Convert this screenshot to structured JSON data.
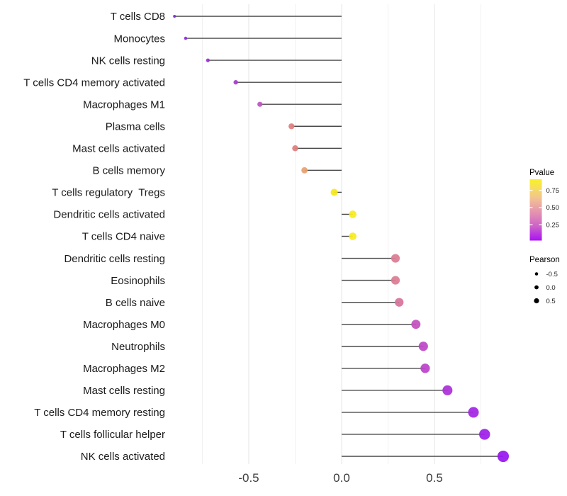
{
  "chart_data": {
    "type": "scatter",
    "variant": "lollipop",
    "title": "",
    "xlabel": "",
    "ylabel": "",
    "xlim": [
      -0.95,
      0.93
    ],
    "grid": {
      "vertical": true,
      "horizontal": false
    },
    "colors": {
      "background": "#FFFFFF",
      "stem": "#4A4A4A",
      "grid_major": "#E4E4E4",
      "grid_minor": "#F1F1F1",
      "axis_text": "#3D3D3D",
      "label_text": "#1A1A1A"
    },
    "x_ticks": [
      {
        "value": -0.5,
        "label": "-0.5"
      },
      {
        "value": 0.0,
        "label": "0.0"
      },
      {
        "value": 0.5,
        "label": "0.5"
      }
    ],
    "x_minor_ticks": [
      -0.75,
      -0.25,
      0.25,
      0.75
    ],
    "rows": [
      {
        "label": "T cells CD8",
        "pearson": -0.9,
        "color": "#8327E4"
      },
      {
        "label": "Monocytes",
        "pearson": -0.84,
        "color": "#8B2BDF"
      },
      {
        "label": "NK cells resting",
        "pearson": -0.72,
        "color": "#982FD9"
      },
      {
        "label": "T cells CD4 memory activated",
        "pearson": -0.57,
        "color": "#A93AD2"
      },
      {
        "label": "Macrophages M1",
        "pearson": -0.44,
        "color": "#BC55C6"
      },
      {
        "label": "Plasma cells",
        "pearson": -0.27,
        "color": "#E07F80"
      },
      {
        "label": "Mast cells activated",
        "pearson": -0.25,
        "color": "#E07E7D"
      },
      {
        "label": "B cells memory",
        "pearson": -0.2,
        "color": "#E8A06F"
      },
      {
        "label": "T cells regulatory  Tregs",
        "pearson": -0.04,
        "color": "#F6E81C"
      },
      {
        "label": "Dendritic cells activated",
        "pearson": 0.06,
        "color": "#F7EC1E"
      },
      {
        "label": "T cells CD4 naive",
        "pearson": 0.06,
        "color": "#F7EC1E"
      },
      {
        "label": "Dendritic cells resting",
        "pearson": 0.29,
        "color": "#DB7C92"
      },
      {
        "label": "Eosinophils",
        "pearson": 0.29,
        "color": "#DB7C92"
      },
      {
        "label": "B cells naive",
        "pearson": 0.31,
        "color": "#D7739B"
      },
      {
        "label": "Macrophages M0",
        "pearson": 0.4,
        "color": "#C351BE"
      },
      {
        "label": "Neutrophils",
        "pearson": 0.44,
        "color": "#BD47C7"
      },
      {
        "label": "Macrophages M2",
        "pearson": 0.45,
        "color": "#BB43C9"
      },
      {
        "label": "Mast cells resting",
        "pearson": 0.57,
        "color": "#AC2FD9"
      },
      {
        "label": "T cells CD4 memory resting",
        "pearson": 0.71,
        "color": "#A326E4"
      },
      {
        "label": "T cells follicular helper",
        "pearson": 0.77,
        "color": "#9E1FE9"
      },
      {
        "label": "NK cells activated",
        "pearson": 0.87,
        "color": "#9916F1"
      }
    ],
    "legend": {
      "position": "right",
      "pvalue": {
        "title": "Pvalue",
        "range": [
          0.02,
          0.91
        ],
        "ticks": [
          {
            "value": 0.75,
            "label": "0.75"
          },
          {
            "value": 0.5,
            "label": "0.50"
          },
          {
            "value": 0.25,
            "label": "0.25"
          }
        ],
        "gradient_top_to_bottom": [
          {
            "offset": "0%",
            "color": "#F9F125"
          },
          {
            "offset": "15%",
            "color": "#F6DD5E"
          },
          {
            "offset": "30%",
            "color": "#F2C48F"
          },
          {
            "offset": "45%",
            "color": "#EAA5A6"
          },
          {
            "offset": "60%",
            "color": "#DE86B7"
          },
          {
            "offset": "78%",
            "color": "#CB5FC9"
          },
          {
            "offset": "92%",
            "color": "#B52EE6"
          },
          {
            "offset": "100%",
            "color": "#AB12F2"
          }
        ]
      },
      "pearson": {
        "title": "Pearson",
        "items": [
          {
            "label": "-0.5",
            "r": 2.3
          },
          {
            "label": "0.0",
            "r": 2.9
          },
          {
            "label": "0.5",
            "r": 3.6
          }
        ],
        "dot_color": "#000000"
      }
    }
  }
}
